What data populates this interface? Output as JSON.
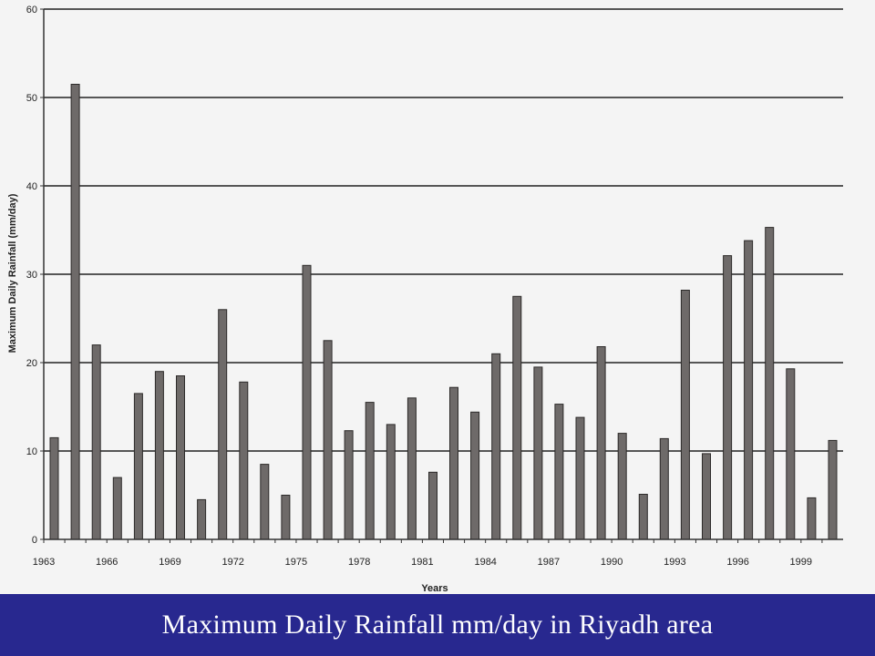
{
  "caption": "Maximum Daily Rainfall mm/day in Riyadh area",
  "colors": {
    "bar": "#6e6a69",
    "bar_stroke": "#2c2a29",
    "gridline": "#222222",
    "caption_bg": "#28288f",
    "caption_text": "#ffffff"
  },
  "chart_data": {
    "type": "bar",
    "title": "",
    "xlabel": "Years",
    "ylabel": "Maximum Daily Rainfall (mm/day)",
    "ylim": [
      0,
      60
    ],
    "yticks": [
      0,
      10,
      20,
      30,
      40,
      50,
      60
    ],
    "grid": true,
    "legend": "none",
    "categories": [
      "1963",
      "1964",
      "1965",
      "1966",
      "1967",
      "1968",
      "1969",
      "1970",
      "1971",
      "1972",
      "1973",
      "1974",
      "1975",
      "1976",
      "1977",
      "1978",
      "1979",
      "1980",
      "1981",
      "1982",
      "1983",
      "1984",
      "1985",
      "1986",
      "1987",
      "1988",
      "1989",
      "1990",
      "1991",
      "1992",
      "1993",
      "1994",
      "1995",
      "1996",
      "1997",
      "1998",
      "1999",
      "2000"
    ],
    "xtick_labels": [
      "1963",
      "1966",
      "1969",
      "1972",
      "1975",
      "1978",
      "1981",
      "1984",
      "1987",
      "1990",
      "1993",
      "1996",
      "1999"
    ],
    "values": [
      11.5,
      51.5,
      22,
      7,
      16.5,
      19,
      18.5,
      4.5,
      26,
      17.8,
      8.5,
      5,
      31,
      22.5,
      12.3,
      15.5,
      13,
      16,
      7.6,
      17.2,
      14.4,
      21,
      27.5,
      19.5,
      15.3,
      13.8,
      21.8,
      12,
      5.1,
      11.4,
      28.2,
      9.7,
      32.1,
      33.8,
      35.3,
      19.3,
      4.7,
      11.2
    ]
  }
}
